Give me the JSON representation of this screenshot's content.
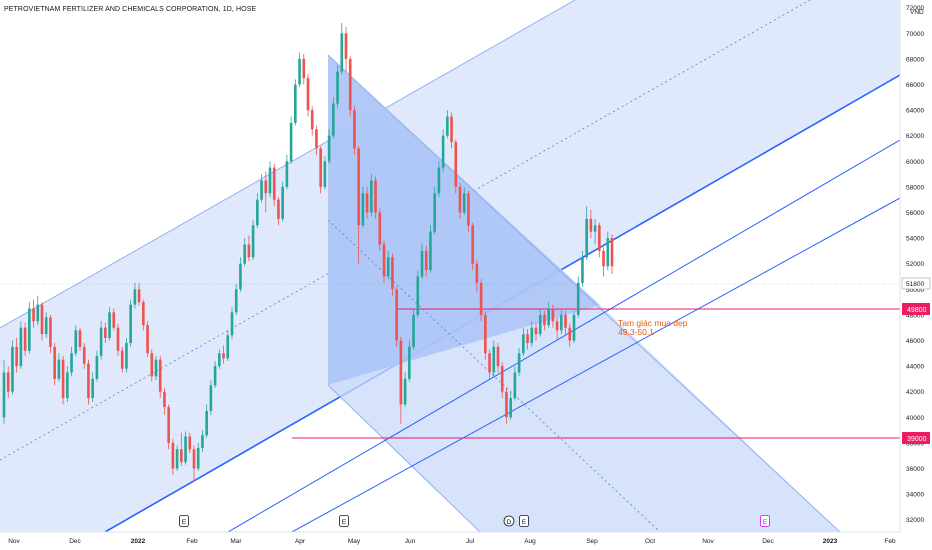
{
  "title": "PETROVIETNAM FERTILIZER AND CHEMICALS CORPORATION, 1D, HOSE",
  "colors": {
    "up": "#26a69a",
    "down": "#ef5350",
    "channel_fill": "#dbe7fb",
    "channel_line": "#2962ff",
    "pitch_fill": "#b9cdf7",
    "level_line": "#e91e63",
    "price_tag": "#e91e63",
    "last_tag": "#ffffff",
    "note": "#e8590c"
  },
  "chart_data": {
    "type": "candlestick",
    "currency": "VND",
    "y_ticks": [
      "72000",
      "70000",
      "68000",
      "66000",
      "64000",
      "62000",
      "60000",
      "58000",
      "56000",
      "54000",
      "52000",
      "50000",
      "48000",
      "46000",
      "44000",
      "42000",
      "40000",
      "38000",
      "36000",
      "34000",
      "32000"
    ],
    "x_ticks": [
      "Nov",
      "Dec",
      "2022",
      "Feb",
      "Mar",
      "Apr",
      "May",
      "Jun",
      "Jul",
      "Aug",
      "Sep",
      "Oct",
      "Nov",
      "Dec",
      "2023",
      "Feb"
    ],
    "last_price": "51800",
    "levels": [
      {
        "label": "49800",
        "value": 49800
      },
      {
        "label": "39000",
        "value": 39000
      }
    ],
    "annotation": {
      "line1": "Tam giác mua đẹp",
      "line2": "49.3-50.1"
    },
    "events": [
      "E",
      "E",
      "D",
      "E",
      "E"
    ],
    "candles": [
      [
        40.0,
        43.5,
        39.5,
        44.5
      ],
      [
        43.5,
        42.0,
        41.5,
        44.0
      ],
      [
        42.0,
        45.5,
        41.8,
        46.0
      ],
      [
        45.5,
        44.0,
        43.5,
        46.2
      ],
      [
        44.0,
        47.0,
        43.8,
        47.5
      ],
      [
        47.0,
        45.2,
        44.8,
        47.4
      ],
      [
        45.2,
        48.5,
        45.0,
        49.0
      ],
      [
        48.5,
        47.5,
        47.0,
        49.2
      ],
      [
        47.5,
        48.8,
        47.2,
        49.5
      ],
      [
        48.8,
        46.5,
        46.0,
        49.0
      ],
      [
        46.5,
        47.8,
        46.2,
        48.2
      ],
      [
        47.8,
        45.5,
        45.0,
        48.0
      ],
      [
        45.5,
        43.0,
        42.5,
        45.8
      ],
      [
        43.0,
        44.5,
        42.8,
        45.0
      ],
      [
        44.5,
        41.5,
        41.0,
        44.8
      ],
      [
        41.5,
        43.5,
        41.2,
        44.0
      ],
      [
        43.5,
        45.0,
        43.2,
        45.5
      ],
      [
        45.0,
        46.8,
        44.8,
        47.2
      ],
      [
        46.8,
        45.5,
        45.2,
        47.0
      ],
      [
        45.5,
        44.2,
        43.8,
        45.8
      ],
      [
        44.2,
        41.5,
        41.0,
        44.5
      ],
      [
        41.5,
        43.0,
        41.2,
        43.5
      ],
      [
        43.0,
        44.8,
        42.8,
        45.2
      ],
      [
        44.8,
        47.0,
        44.5,
        47.5
      ],
      [
        47.0,
        46.2,
        45.8,
        47.4
      ],
      [
        46.2,
        48.2,
        46.0,
        48.6
      ],
      [
        48.2,
        47.0,
        46.8,
        48.5
      ],
      [
        47.0,
        45.2,
        44.8,
        47.3
      ],
      [
        45.2,
        43.8,
        43.5,
        45.5
      ],
      [
        43.8,
        45.8,
        43.5,
        46.2
      ],
      [
        45.8,
        48.8,
        45.5,
        49.2
      ],
      [
        48.8,
        50.0,
        48.5,
        50.5
      ],
      [
        50.0,
        49.0,
        48.7,
        50.5
      ],
      [
        49.0,
        47.2,
        46.8,
        49.2
      ],
      [
        47.2,
        45.0,
        44.7,
        47.5
      ],
      [
        45.0,
        43.2,
        42.8,
        45.3
      ],
      [
        43.2,
        44.5,
        42.9,
        44.8
      ],
      [
        44.5,
        42.0,
        41.5,
        44.8
      ],
      [
        42.0,
        40.8,
        40.2,
        42.3
      ],
      [
        40.8,
        38.0,
        37.5,
        41.0
      ],
      [
        38.0,
        36.0,
        35.5,
        38.3
      ],
      [
        36.0,
        37.5,
        35.8,
        37.8
      ],
      [
        37.5,
        36.5,
        36.2,
        38.8
      ],
      [
        36.5,
        38.5,
        36.3,
        38.9
      ],
      [
        38.5,
        37.5,
        37.2,
        38.8
      ],
      [
        37.5,
        36.0,
        35.0,
        37.8
      ],
      [
        36.0,
        37.6,
        35.8,
        38.0
      ],
      [
        37.6,
        38.6,
        37.3,
        39.0
      ],
      [
        38.6,
        40.5,
        38.4,
        41.0
      ],
      [
        40.5,
        42.5,
        40.2,
        42.9
      ],
      [
        42.5,
        44.0,
        42.3,
        44.4
      ],
      [
        44.0,
        45.0,
        43.8,
        45.3
      ],
      [
        45.0,
        44.6,
        44.2,
        45.6
      ],
      [
        44.6,
        46.4,
        44.4,
        46.8
      ],
      [
        46.4,
        48.2,
        46.1,
        48.6
      ],
      [
        48.2,
        50.0,
        48.0,
        50.4
      ],
      [
        50.0,
        52.0,
        49.8,
        52.5
      ],
      [
        52.0,
        53.5,
        51.8,
        54.0
      ],
      [
        53.5,
        52.5,
        52.2,
        54.2
      ],
      [
        52.5,
        55.0,
        52.3,
        55.4
      ],
      [
        55.0,
        57.0,
        54.8,
        57.5
      ],
      [
        57.0,
        58.5,
        56.8,
        59.0
      ],
      [
        58.5,
        57.5,
        56.0,
        59.2
      ],
      [
        57.5,
        59.5,
        57.2,
        60.0
      ],
      [
        59.5,
        57.0,
        56.5,
        59.8
      ],
      [
        57.0,
        55.5,
        55.0,
        57.2
      ],
      [
        55.5,
        58.0,
        55.3,
        58.4
      ],
      [
        58.0,
        60.0,
        57.8,
        60.5
      ],
      [
        60.0,
        63.0,
        59.8,
        63.5
      ],
      [
        63.0,
        66.0,
        62.8,
        66.4
      ],
      [
        66.0,
        68.0,
        65.8,
        68.5
      ],
      [
        68.0,
        66.5,
        66.0,
        68.4
      ],
      [
        66.5,
        64.0,
        63.5,
        66.8
      ],
      [
        64.0,
        62.5,
        62.0,
        64.3
      ],
      [
        62.5,
        61.0,
        60.5,
        62.8
      ],
      [
        61.0,
        58.0,
        57.5,
        61.2
      ],
      [
        58.0,
        60.0,
        57.8,
        60.4
      ],
      [
        60.0,
        62.0,
        59.8,
        62.5
      ],
      [
        62.0,
        64.5,
        61.8,
        65.0
      ],
      [
        64.5,
        67.0,
        64.2,
        67.5
      ],
      [
        67.0,
        70.0,
        66.8,
        70.8
      ],
      [
        70.0,
        68.0,
        67.0,
        70.5
      ],
      [
        68.0,
        64.0,
        63.5,
        68.2
      ],
      [
        64.0,
        61.0,
        60.5,
        64.3
      ],
      [
        61.0,
        55.0,
        52.0,
        61.2
      ],
      [
        55.0,
        57.5,
        54.8,
        58.0
      ],
      [
        57.5,
        56.0,
        55.5,
        58.0
      ],
      [
        56.0,
        58.5,
        55.7,
        59.0
      ],
      [
        58.5,
        56.0,
        55.5,
        58.8
      ],
      [
        56.0,
        53.5,
        53.0,
        56.3
      ],
      [
        53.5,
        51.0,
        50.5,
        53.8
      ],
      [
        51.0,
        52.5,
        50.8,
        53.0
      ],
      [
        52.5,
        50.0,
        49.5,
        52.8
      ],
      [
        50.0,
        46.0,
        45.5,
        50.2
      ],
      [
        46.0,
        41.0,
        39.5,
        46.3
      ],
      [
        41.0,
        43.0,
        40.8,
        43.5
      ],
      [
        43.0,
        45.5,
        42.8,
        46.0
      ],
      [
        45.5,
        48.0,
        45.3,
        48.5
      ],
      [
        48.0,
        51.0,
        47.8,
        51.5
      ],
      [
        51.0,
        53.0,
        50.8,
        53.6
      ],
      [
        53.0,
        51.5,
        51.0,
        53.4
      ],
      [
        51.5,
        54.5,
        51.3,
        55.0
      ],
      [
        54.5,
        57.5,
        54.3,
        58.0
      ],
      [
        57.5,
        59.5,
        57.2,
        60.0
      ],
      [
        59.5,
        62.0,
        59.2,
        62.5
      ],
      [
        62.0,
        63.5,
        61.8,
        64.0
      ],
      [
        63.5,
        61.5,
        61.0,
        63.8
      ],
      [
        61.5,
        58.0,
        57.5,
        61.7
      ],
      [
        58.0,
        56.0,
        55.5,
        58.3
      ],
      [
        56.0,
        57.5,
        55.8,
        58.0
      ],
      [
        57.5,
        55.0,
        54.5,
        57.7
      ],
      [
        55.0,
        52.0,
        51.5,
        55.2
      ],
      [
        52.0,
        50.5,
        49.8,
        52.3
      ],
      [
        50.5,
        48.0,
        47.5,
        50.8
      ],
      [
        48.0,
        45.0,
        44.5,
        48.3
      ],
      [
        45.0,
        43.5,
        43.0,
        45.3
      ],
      [
        43.5,
        45.5,
        43.2,
        46.0
      ],
      [
        45.5,
        44.0,
        43.5,
        45.8
      ],
      [
        44.0,
        42.0,
        41.5,
        44.3
      ],
      [
        42.0,
        40.0,
        39.5,
        42.3
      ],
      [
        40.0,
        41.5,
        39.8,
        42.0
      ],
      [
        41.5,
        43.5,
        41.3,
        44.0
      ],
      [
        43.5,
        45.0,
        43.2,
        45.4
      ],
      [
        45.0,
        46.5,
        44.8,
        47.0
      ],
      [
        46.5,
        45.8,
        45.3,
        46.9
      ],
      [
        45.8,
        47.0,
        45.5,
        47.5
      ],
      [
        47.0,
        46.5,
        46.0,
        47.4
      ],
      [
        46.5,
        48.0,
        46.3,
        48.4
      ],
      [
        48.0,
        47.2,
        46.8,
        48.3
      ],
      [
        47.2,
        48.5,
        47.0,
        49.0
      ],
      [
        48.5,
        47.5,
        47.0,
        48.8
      ],
      [
        47.5,
        46.8,
        46.0,
        47.8
      ],
      [
        46.8,
        48.0,
        46.5,
        48.4
      ],
      [
        48.0,
        47.0,
        46.5,
        48.3
      ],
      [
        47.0,
        46.0,
        45.5,
        47.3
      ],
      [
        46.0,
        48.0,
        45.8,
        48.3
      ],
      [
        48.0,
        50.5,
        47.8,
        51.0
      ],
      [
        50.5,
        52.5,
        50.2,
        53.0
      ],
      [
        52.5,
        55.5,
        52.3,
        56.5
      ],
      [
        55.5,
        54.5,
        54.0,
        56.2
      ],
      [
        54.5,
        55.0,
        53.5,
        55.5
      ],
      [
        55.0,
        53.0,
        52.5,
        55.2
      ],
      [
        53.0,
        51.8,
        51.0,
        53.3
      ],
      [
        51.8,
        54.0,
        51.5,
        54.5
      ],
      [
        54.0,
        51.8,
        51.2,
        54.3
      ]
    ]
  }
}
